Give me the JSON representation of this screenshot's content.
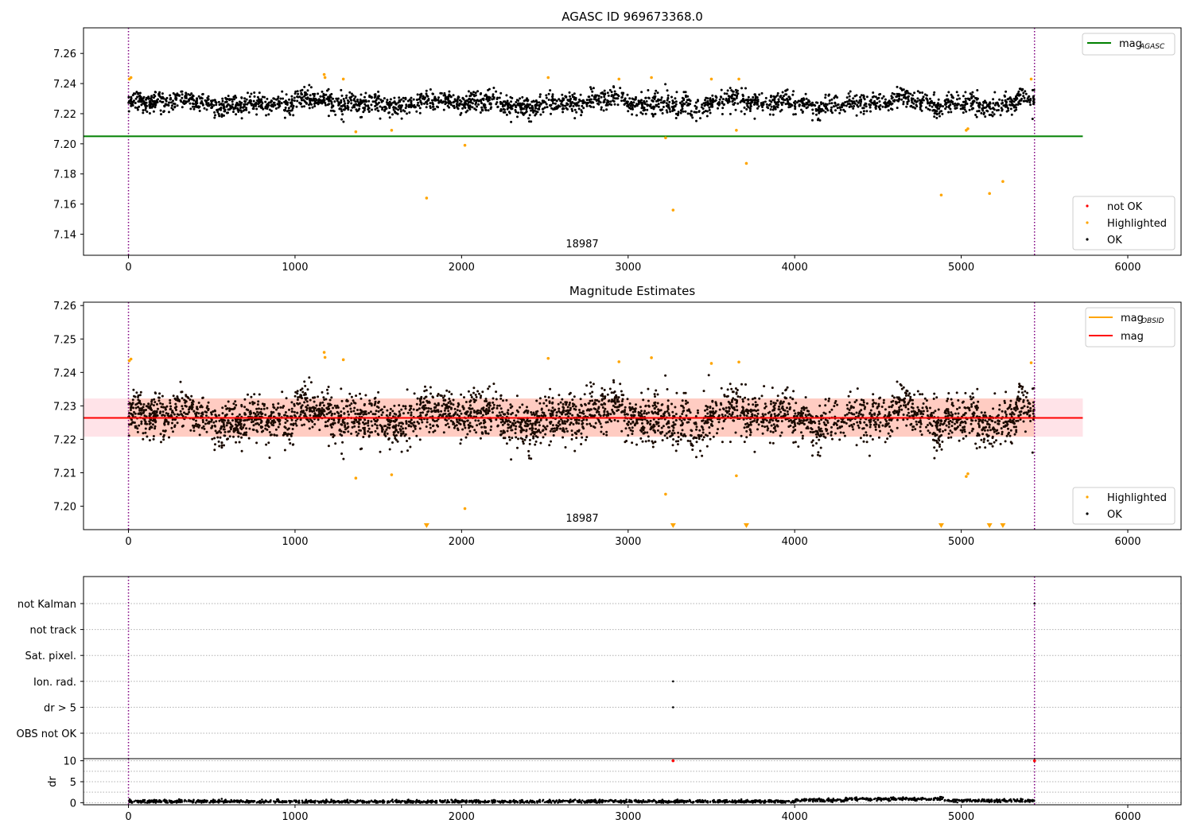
{
  "chart_data": [
    {
      "type": "scatter",
      "title": "AGASC ID 969673368.0",
      "xlim": [
        -270,
        6320
      ],
      "ylim": [
        7.126,
        7.277
      ],
      "x_ticks": [
        "0",
        "1000",
        "2000",
        "3000",
        "4000",
        "5000",
        "6000"
      ],
      "y_ticks": [
        "7.14",
        "7.16",
        "7.18",
        "7.20",
        "7.22",
        "7.24",
        "7.26"
      ],
      "obsid_label": "18987",
      "obsid_label_x": 2730,
      "vlines_x": [
        0,
        5440
      ],
      "reference_line": {
        "name": "mag_AGASC",
        "value": 7.205,
        "x_range": [
          -270,
          5730
        ],
        "color": "#008000"
      },
      "ok_points": {
        "x_range": [
          0,
          5440
        ],
        "center": 7.227,
        "spread": 0.0045,
        "color": "#000000"
      },
      "series": [
        {
          "name": "not OK",
          "color": "#ff0000",
          "x": [],
          "y": []
        },
        {
          "name": "Highlighted",
          "color": "#ffa500",
          "x": [
            5,
            15,
            1175,
            1180,
            1290,
            1365,
            1580,
            1790,
            2020,
            2520,
            2945,
            3140,
            3225,
            3270,
            3500,
            3650,
            3665,
            3710,
            4880,
            5030,
            5040,
            5170,
            5250,
            5420
          ],
          "y": [
            7.243,
            7.244,
            7.246,
            7.244,
            7.243,
            7.208,
            7.209,
            7.164,
            7.199,
            7.244,
            7.243,
            7.244,
            7.204,
            7.156,
            7.243,
            7.209,
            7.243,
            7.187,
            7.166,
            7.209,
            7.21,
            7.167,
            7.175,
            7.243
          ]
        },
        {
          "name": "OK",
          "color": "#000000",
          "x": [],
          "y": []
        }
      ],
      "legends": [
        {
          "position": "top-right",
          "entries": [
            {
              "label": "mag",
              "subscript": "AGASC",
              "kind": "line",
              "color": "#008000"
            }
          ]
        },
        {
          "position": "lower-right",
          "entries": [
            {
              "label": "not OK",
              "kind": "dot",
              "color": "#ff0000"
            },
            {
              "label": "Highlighted",
              "kind": "dot",
              "color": "#ffa500"
            },
            {
              "label": "OK",
              "kind": "dot",
              "color": "#000000"
            }
          ]
        }
      ]
    },
    {
      "type": "scatter",
      "title": "Magnitude Estimates",
      "xlim": [
        -270,
        6320
      ],
      "ylim": [
        7.193,
        7.261
      ],
      "x_ticks": [
        "0",
        "1000",
        "2000",
        "3000",
        "4000",
        "5000",
        "6000"
      ],
      "y_ticks": [
        "7.20",
        "7.21",
        "7.22",
        "7.23",
        "7.24",
        "7.25",
        "7.26"
      ],
      "obsid_label": "18987",
      "obsid_label_x": 2730,
      "vlines_x": [
        0,
        5440
      ],
      "band": {
        "lower": 7.2208,
        "upper": 7.2322,
        "x_range": [
          -270,
          5730
        ]
      },
      "mag_obsid": {
        "name": "mag_OBSID",
        "value": 7.2264,
        "x_range": [
          0,
          5440
        ],
        "color": "#ffa500"
      },
      "mag_line": {
        "name": "mag",
        "value": 7.2264,
        "x_range": [
          -270,
          5730
        ],
        "color": "#ff0000"
      },
      "ok_points": {
        "x_range": [
          0,
          5440
        ],
        "center": 7.2265,
        "spread": 0.0045,
        "color": "#000000"
      },
      "series": [
        {
          "name": "Highlighted",
          "color": "#ffa500",
          "x": [
            5,
            15,
            1175,
            1180,
            1290,
            1365,
            1580,
            2020,
            2520,
            2945,
            3140,
            3225,
            3500,
            3650,
            3665,
            5030,
            5040,
            5420
          ],
          "y": [
            7.2435,
            7.244,
            7.246,
            7.2445,
            7.2438,
            7.2084,
            7.2094,
            7.1993,
            7.2442,
            7.2432,
            7.2444,
            7.2036,
            7.2427,
            7.2091,
            7.2431,
            7.2089,
            7.2097,
            7.2429
          ]
        },
        {
          "name": "OK",
          "color": "#000000",
          "x": [],
          "y": []
        }
      ],
      "offscale_markers_x": [
        1790,
        3270,
        3710,
        4880,
        5170,
        5250
      ],
      "legends": [
        {
          "position": "top-right",
          "entries": [
            {
              "label": "mag",
              "subscript": "OBSID",
              "kind": "line",
              "color": "#ffa500"
            },
            {
              "label": "mag",
              "kind": "line",
              "color": "#ff0000"
            }
          ]
        },
        {
          "position": "lower-right",
          "entries": [
            {
              "label": "Highlighted",
              "kind": "dot",
              "color": "#ffa500"
            },
            {
              "label": "OK",
              "kind": "dot",
              "color": "#000000"
            }
          ]
        }
      ]
    },
    {
      "type": "scatter",
      "title": "",
      "xlim": [
        -270,
        6320
      ],
      "categories": [
        "not Kalman",
        "not track",
        "Sat. pixel.",
        "Ion. rad.",
        "dr > 5",
        "OBS not OK"
      ],
      "vlines_x": [
        0,
        5440
      ],
      "flag_points": [
        {
          "category": "Ion. rad.",
          "x": 3270
        },
        {
          "category": "dr > 5",
          "x": 3270
        },
        {
          "category": "not Kalman",
          "x": 5440
        }
      ]
    },
    {
      "type": "line",
      "title": "",
      "ylabel": "dr",
      "xlim": [
        -270,
        6320
      ],
      "ylim": [
        -0.5,
        10.5
      ],
      "x_ticks": [
        "0",
        "1000",
        "2000",
        "3000",
        "4000",
        "5000",
        "6000"
      ],
      "y_ticks": [
        "0",
        "5",
        "10"
      ],
      "vlines_x": [
        0,
        5440
      ],
      "dr_segments": [
        {
          "x": [
            0,
            1000
          ],
          "level": 0.3
        },
        {
          "x": [
            1000,
            2000
          ],
          "level": 0.25
        },
        {
          "x": [
            2000,
            4000
          ],
          "level": 0.3
        },
        {
          "x": [
            4000,
            4300
          ],
          "level": 0.6
        },
        {
          "x": [
            4300,
            4900
          ],
          "level": 0.9
        },
        {
          "x": [
            4900,
            5440
          ],
          "level": 0.5
        }
      ],
      "red_markers": [
        {
          "x": 3270,
          "y": 10
        },
        {
          "x": 5440,
          "y": 10
        }
      ]
    }
  ],
  "figure_title": "AGASC ID 969673368.0"
}
